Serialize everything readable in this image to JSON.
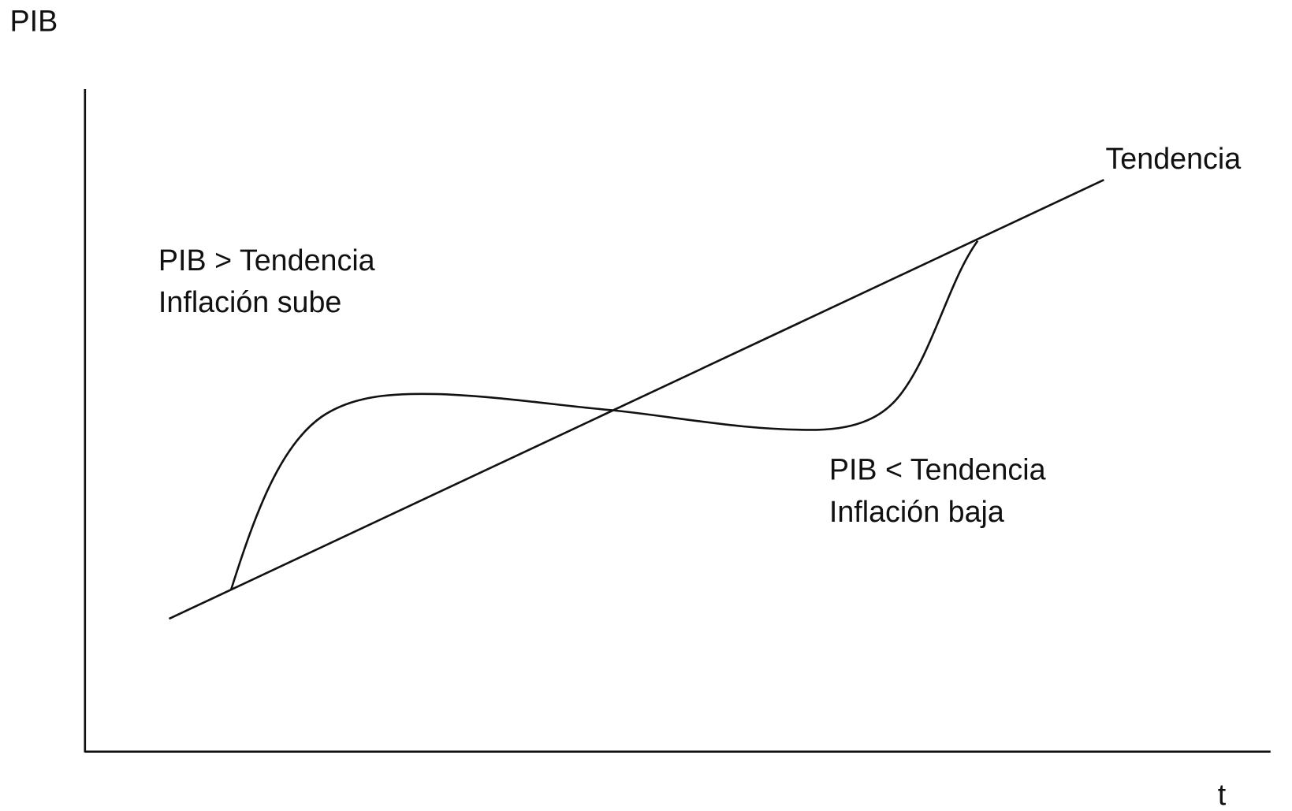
{
  "axes": {
    "y_label": "PIB",
    "x_label": "t"
  },
  "trend": {
    "label": "Tendencia"
  },
  "annotations": [
    {
      "line1": "PIB > Tendencia",
      "line2": "Inflación sube"
    },
    {
      "line1": "PIB < Tendencia",
      "line2": "Inflación baja"
    }
  ]
}
